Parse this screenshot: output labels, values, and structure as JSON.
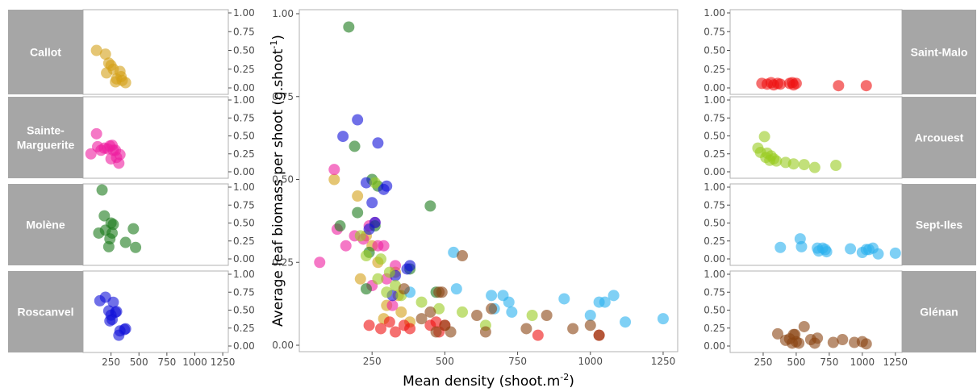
{
  "chart_data": {
    "type": "scatter",
    "xlabel": "Mean density (shoot.m",
    "xlabel_sup": "-2",
    "xlabel_end": ")",
    "ylabel": "Average leaf biomass per shoot (g.shoot",
    "ylabel_sup": "-1",
    "ylabel_end": ")",
    "xlim": [
      0,
      1300
    ],
    "ylim": [
      0,
      1
    ],
    "x_ticks": [
      250,
      500,
      750,
      1000,
      1250
    ],
    "y_ticks": [
      0.0,
      0.25,
      0.5,
      0.75,
      1.0
    ],
    "x_tick_labels": [
      "250",
      "500",
      "750",
      "1000",
      "1250"
    ],
    "main_x_tick_labels": [
      "250",
      "500",
      "750",
      "1000",
      "1250"
    ],
    "y_tick_labels": [
      "0.00",
      "0.25",
      "0.50",
      "0.75",
      "1.00"
    ],
    "main_y_tick_labels": [
      "0.00",
      "0.25",
      "0.50",
      "0.75",
      "1.00"
    ],
    "grid": false,
    "legend": "none",
    "point_opacity": 0.6,
    "series": [
      {
        "name": "Callot",
        "color": "#d4a017",
        "side": "left",
        "row": 0,
        "x": [
          120,
          200,
          210,
          230,
          250,
          270,
          290,
          300,
          330,
          340,
          350,
          380
        ],
        "y": [
          0.5,
          0.45,
          0.2,
          0.33,
          0.3,
          0.25,
          0.08,
          0.12,
          0.22,
          0.15,
          0.1,
          0.07
        ]
      },
      {
        "name": "Sainte-\nMarguerite",
        "color": "#ee1ea0",
        "side": "left",
        "row": 1,
        "x": [
          70,
          120,
          130,
          160,
          190,
          220,
          240,
          250,
          260,
          270,
          290,
          300,
          320,
          330
        ],
        "y": [
          0.25,
          0.53,
          0.35,
          0.3,
          0.33,
          0.32,
          0.36,
          0.18,
          0.37,
          0.3,
          0.3,
          0.2,
          0.12,
          0.24
        ]
      },
      {
        "name": "Molène",
        "color": "#1a7a1a",
        "side": "left",
        "row": 2,
        "x": [
          140,
          170,
          190,
          200,
          230,
          240,
          250,
          260,
          270,
          380,
          450,
          470
        ],
        "y": [
          0.36,
          0.96,
          0.6,
          0.4,
          0.17,
          0.28,
          0.5,
          0.36,
          0.48,
          0.23,
          0.42,
          0.16
        ]
      },
      {
        "name": "Roscanvel",
        "color": "#1010d8",
        "side": "left",
        "row": 3,
        "x": [
          150,
          200,
          230,
          240,
          250,
          260,
          270,
          290,
          300,
          320,
          330,
          370,
          380
        ],
        "y": [
          0.63,
          0.68,
          0.49,
          0.35,
          0.43,
          0.37,
          0.61,
          0.47,
          0.48,
          0.15,
          0.21,
          0.23,
          0.24
        ]
      },
      {
        "name": "Saint-Malo",
        "color": "#ee1111",
        "side": "right",
        "row": 0,
        "x": [
          240,
          280,
          310,
          330,
          360,
          380,
          450,
          470,
          480,
          500,
          820,
          1030
        ],
        "y": [
          0.06,
          0.05,
          0.07,
          0.04,
          0.06,
          0.05,
          0.06,
          0.07,
          0.04,
          0.06,
          0.03,
          0.03
        ]
      },
      {
        "name": "Arcouest",
        "color": "#99cc22",
        "side": "right",
        "row": 1,
        "x": [
          210,
          230,
          260,
          270,
          280,
          300,
          310,
          330,
          350,
          420,
          480,
          560,
          640,
          800
        ],
        "y": [
          0.33,
          0.27,
          0.49,
          0.2,
          0.26,
          0.16,
          0.22,
          0.18,
          0.15,
          0.13,
          0.11,
          0.1,
          0.06,
          0.09
        ]
      },
      {
        "name": "Sept-Iles",
        "color": "#2ab0ee",
        "side": "right",
        "row": 2,
        "x": [
          380,
          530,
          540,
          660,
          700,
          720,
          730,
          910,
          1000,
          1050,
          1080,
          1120,
          1250,
          1030,
          670
        ],
        "y": [
          0.16,
          0.28,
          0.17,
          0.15,
          0.15,
          0.13,
          0.1,
          0.14,
          0.09,
          0.13,
          0.15,
          0.07,
          0.08,
          0.13,
          0.11
        ]
      },
      {
        "name": "Glénan",
        "color": "#8b4513",
        "side": "right",
        "row": 3,
        "x": [
          360,
          450,
          470,
          480,
          500,
          520,
          560,
          610,
          640,
          660,
          780,
          850,
          940,
          1000,
          1030,
          490,
          420
        ],
        "y": [
          0.17,
          0.1,
          0.04,
          0.16,
          0.06,
          0.04,
          0.27,
          0.09,
          0.04,
          0.11,
          0.05,
          0.09,
          0.05,
          0.06,
          0.03,
          0.16,
          0.08
        ]
      }
    ]
  }
}
